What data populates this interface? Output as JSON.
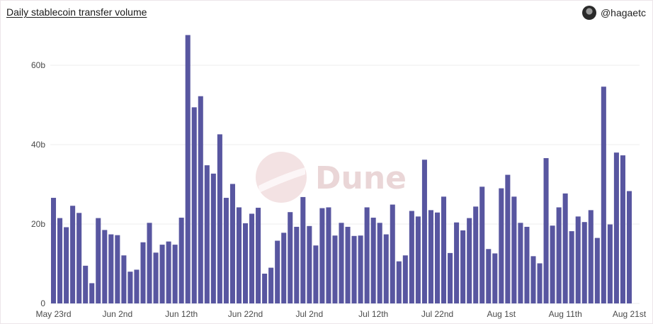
{
  "header": {
    "title": "Daily stablecoin transfer volume",
    "author": "@hagaetc"
  },
  "watermark": {
    "text": "Dune"
  },
  "colors": {
    "bar": "#5856a0",
    "grid": "#ececec",
    "watermark": "#ead6d7"
  },
  "chart_data": {
    "type": "bar",
    "title": "Daily stablecoin transfer volume",
    "xlabel": "",
    "ylabel": "",
    "ylim": [
      0,
      68
    ],
    "yticks": [
      0,
      20,
      40,
      60
    ],
    "ytick_labels": [
      "0",
      "20b",
      "40b",
      "60b"
    ],
    "xticks": [
      {
        "label": "May 23rd",
        "index": 0
      },
      {
        "label": "Jun 2nd",
        "index": 10
      },
      {
        "label": "Jun 12th",
        "index": 20
      },
      {
        "label": "Jun 22nd",
        "index": 30
      },
      {
        "label": "Jul 2nd",
        "index": 40
      },
      {
        "label": "Jul 12th",
        "index": 50
      },
      {
        "label": "Jul 22nd",
        "index": 60
      },
      {
        "label": "Aug 1st",
        "index": 70
      },
      {
        "label": "Aug 11th",
        "index": 80
      },
      {
        "label": "Aug 21st",
        "index": 90
      }
    ],
    "grid": true,
    "values": [
      26.6,
      21.5,
      19.2,
      24.6,
      22.8,
      9.5,
      5.1,
      21.5,
      18.5,
      17.4,
      17.2,
      12.1,
      8.0,
      8.5,
      15.4,
      20.3,
      12.8,
      14.8,
      15.6,
      14.8,
      21.6,
      67.6,
      49.4,
      52.2,
      34.8,
      32.7,
      42.6,
      26.6,
      30.1,
      24.2,
      20.2,
      22.6,
      24.1,
      7.5,
      9.0,
      15.8,
      17.8,
      23.0,
      19.3,
      26.8,
      19.5,
      14.6,
      24.0,
      24.2,
      17.1,
      20.3,
      19.3,
      17.0,
      17.1,
      24.2,
      21.6,
      20.3,
      17.4,
      24.9,
      10.6,
      12.1,
      23.3,
      21.9,
      36.2,
      23.5,
      22.9,
      26.9,
      12.7,
      20.4,
      18.4,
      21.5,
      24.4,
      29.4,
      13.7,
      12.6,
      29.0,
      32.4,
      26.9,
      20.3,
      19.3,
      11.9,
      10.1,
      36.6,
      19.6,
      24.2,
      27.7,
      18.2,
      21.9,
      20.5,
      23.5,
      16.5,
      54.6,
      19.9,
      38.0,
      37.3,
      28.3
    ]
  }
}
